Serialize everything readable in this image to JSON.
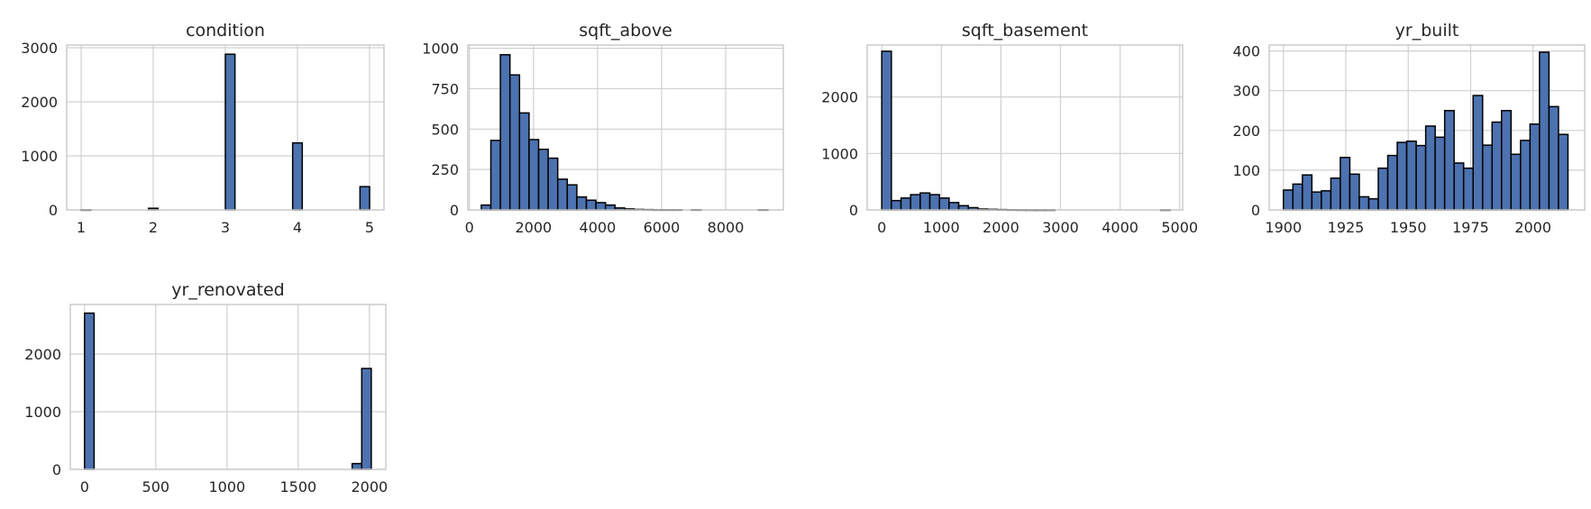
{
  "chart_data": [
    {
      "type": "bar",
      "title": "condition",
      "xlim": [
        0.8,
        5.2
      ],
      "ylim": [
        0,
        3050
      ],
      "xticks": [
        1,
        2,
        3,
        4,
        5
      ],
      "yticks": [
        0,
        1000,
        2000,
        3000
      ],
      "bin_edges": [
        1,
        1.1333,
        1.2667,
        1.4,
        1.5333,
        1.6667,
        1.8,
        1.9333,
        2.0667,
        2.2,
        2.3333,
        2.4667,
        2.6,
        2.7333,
        2.8667,
        3,
        3.1333,
        3.2667,
        3.4,
        3.5333,
        3.6667,
        3.8,
        3.9333,
        4.0667,
        4.2,
        4.3333,
        4.4667,
        4.6,
        4.7333,
        4.8667,
        5
      ],
      "counts": [
        2,
        0,
        0,
        0,
        0,
        0,
        0,
        30,
        0,
        0,
        0,
        0,
        0,
        0,
        0,
        2880,
        0,
        0,
        0,
        0,
        0,
        0,
        1240,
        0,
        0,
        0,
        0,
        0,
        0,
        430
      ]
    },
    {
      "type": "bar",
      "title": "sqft_above",
      "xlim": [
        -50,
        9800
      ],
      "ylim": [
        0,
        1020
      ],
      "xticks": [
        0,
        2000,
        4000,
        6000,
        8000
      ],
      "yticks": [
        0,
        250,
        500,
        750,
        1000
      ],
      "bin_edges": [
        370,
        668.3,
        966.6,
        1264.9,
        1563.2,
        1861.5,
        2159.8,
        2458.1,
        2756.4,
        3054.7,
        3353,
        3651.3,
        3949.6,
        4247.9,
        4546.2,
        4844.5,
        5142.8,
        5441.1,
        5739.4,
        6037.7,
        6336,
        6634.3,
        6932.6,
        7230.9,
        7529.2,
        7827.5,
        8125.8,
        8424.1,
        8722.4,
        9020.7,
        9319
      ],
      "counts": [
        30,
        430,
        960,
        835,
        600,
        435,
        375,
        320,
        190,
        155,
        80,
        60,
        45,
        30,
        12,
        6,
        3,
        2,
        1,
        1,
        1,
        0,
        1,
        0,
        0,
        0,
        0,
        0,
        0,
        1
      ]
    },
    {
      "type": "bar",
      "title": "sqft_basement",
      "xlim": [
        -245,
        5050
      ],
      "ylim": [
        0,
        2920
      ],
      "xticks": [
        0,
        1000,
        2000,
        3000,
        4000,
        5000
      ],
      "yticks": [
        0,
        1000,
        2000
      ],
      "bin_edges": [
        0,
        161.4,
        322.8,
        484.2,
        645.6,
        807,
        968.4,
        1129.8,
        1291.2,
        1452.6,
        1614,
        1775.4,
        1936.8,
        2098.2,
        2259.6,
        2421,
        2582.4,
        2743.8,
        2905.2,
        3066.6,
        3228,
        3389.4,
        3550.8,
        3712.2,
        3873.6,
        4035,
        4196.4,
        4357.8,
        4519.2,
        4680.6,
        4842
      ],
      "counts": [
        2810,
        165,
        210,
        270,
        300,
        270,
        210,
        130,
        75,
        40,
        15,
        10,
        6,
        3,
        2,
        1,
        1,
        1,
        0,
        0,
        0,
        0,
        0,
        0,
        0,
        0,
        0,
        0,
        0,
        1
      ]
    },
    {
      "type": "bar",
      "title": "yr_built",
      "xlim": [
        1894.3,
        2020.7
      ],
      "ylim": [
        0,
        415
      ],
      "xticks": [
        1900,
        1925,
        1950,
        1975,
        2000
      ],
      "yticks": [
        0,
        100,
        200,
        300,
        400
      ],
      "bin_edges": [
        1900,
        1903.8,
        1907.6,
        1911.4,
        1915.2,
        1919,
        1922.8,
        1926.6,
        1930.4,
        1934.2,
        1938,
        1941.8,
        1945.6,
        1949.4,
        1953.2,
        1957,
        1960.8,
        1964.6,
        1968.4,
        1972.2,
        1976,
        1979.8,
        1983.6,
        1987.4,
        1991.2,
        1995,
        1998.8,
        2002.6,
        2006.4,
        2010.2,
        2014
      ],
      "counts": [
        50,
        65,
        88,
        45,
        48,
        80,
        132,
        90,
        33,
        28,
        105,
        137,
        170,
        173,
        162,
        211,
        183,
        250,
        118,
        105,
        288,
        163,
        221,
        250,
        140,
        175,
        216,
        397,
        260,
        190
      ]
    },
    {
      "type": "bar",
      "title": "yr_renovated",
      "xlim": [
        -100,
        2115
      ],
      "ylim": [
        0,
        2860
      ],
      "xticks": [
        0,
        500,
        1000,
        1500,
        2000
      ],
      "yticks": [
        0,
        1000,
        2000
      ],
      "bin_edges": [
        0,
        67.1,
        134.2,
        201.3,
        268.4,
        335.5,
        402.6,
        469.7,
        536.8,
        603.9,
        671,
        738.1,
        805.2,
        872.3,
        939.4,
        1006.5,
        1073.6,
        1140.7,
        1207.8,
        1274.9,
        1342,
        1409.1,
        1476.2,
        1543.3,
        1610.4,
        1677.5,
        1744.6,
        1811.7,
        1878.8,
        1945.9,
        2013
      ],
      "counts": [
        2710,
        0,
        0,
        0,
        0,
        0,
        0,
        0,
        0,
        0,
        0,
        0,
        0,
        0,
        0,
        0,
        0,
        0,
        0,
        0,
        0,
        0,
        0,
        0,
        0,
        0,
        0,
        0,
        100,
        1750
      ]
    }
  ]
}
